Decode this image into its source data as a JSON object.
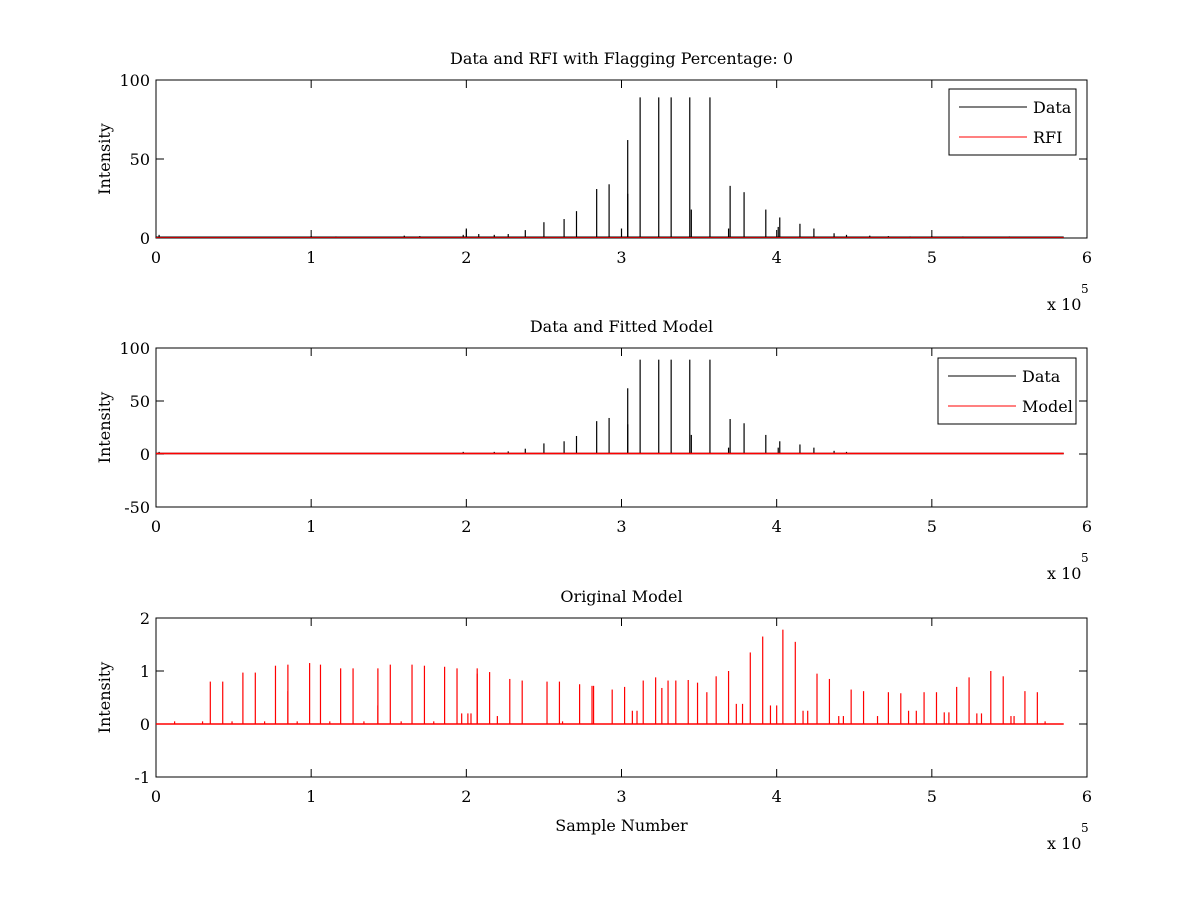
{
  "chart_data": [
    {
      "type": "line",
      "title": "Data and RFI with Flagging Percentage: 0",
      "xlabel": "",
      "ylabel": "Intensity",
      "xlim": [
        0,
        6
      ],
      "ylim": [
        0,
        100
      ],
      "xticks": [
        "0",
        "1",
        "2",
        "3",
        "4",
        "5",
        "6"
      ],
      "yticks": [
        "0",
        "50",
        "100"
      ],
      "x_exponent": {
        "base": "x 10",
        "power": "5"
      },
      "x_end": 5.85,
      "grid": false,
      "legend": "top-right",
      "series": [
        {
          "name": "Data",
          "color": "#000000",
          "baseline": 0.5,
          "spikes": [
            [
              0.02,
              2
            ],
            [
              1.0,
              1.2
            ],
            [
              1.16,
              1.0
            ],
            [
              1.6,
              1.5
            ],
            [
              1.7,
              1.2
            ],
            [
              1.98,
              2
            ],
            [
              2.0,
              6
            ],
            [
              2.08,
              2.5
            ],
            [
              2.18,
              2
            ],
            [
              2.27,
              2.5
            ],
            [
              2.38,
              5
            ],
            [
              2.5,
              10
            ],
            [
              2.63,
              12
            ],
            [
              2.71,
              17
            ],
            [
              2.84,
              31
            ],
            [
              2.92,
              34
            ],
            [
              3.0,
              6
            ],
            [
              3.04,
              62
            ],
            [
              3.04,
              28
            ],
            [
              3.12,
              89
            ],
            [
              3.24,
              89
            ],
            [
              3.32,
              89
            ],
            [
              3.44,
              89
            ],
            [
              3.45,
              18
            ],
            [
              3.57,
              89
            ],
            [
              3.7,
              33
            ],
            [
              3.69,
              6
            ],
            [
              3.79,
              29
            ],
            [
              3.93,
              18
            ],
            [
              4.02,
              13
            ],
            [
              4.01,
              7
            ],
            [
              4.15,
              9
            ],
            [
              4.24,
              6
            ],
            [
              4.37,
              3
            ],
            [
              4.45,
              2
            ],
            [
              4.6,
              1.5
            ],
            [
              4.72,
              1.2
            ],
            [
              4.86,
              1
            ],
            [
              5.0,
              1.2
            ],
            [
              5.2,
              1
            ],
            [
              5.5,
              1
            ]
          ]
        },
        {
          "name": "RFI",
          "color": "#ff0000",
          "baseline": 0,
          "spikes": []
        }
      ]
    },
    {
      "type": "line",
      "title": "Data and Fitted Model",
      "xlabel": "",
      "ylabel": "Intensity",
      "xlim": [
        0,
        6
      ],
      "ylim": [
        -50,
        100
      ],
      "xticks": [
        "0",
        "1",
        "2",
        "3",
        "4",
        "5",
        "6"
      ],
      "yticks": [
        "-50",
        "0",
        "50",
        "100"
      ],
      "x_exponent": {
        "base": "x 10",
        "power": "5"
      },
      "x_end": 5.85,
      "grid": false,
      "legend": "top-right",
      "series": [
        {
          "name": "Data",
          "color": "#000000",
          "baseline": 0.5,
          "spikes": [
            [
              0.02,
              2
            ],
            [
              1.98,
              2
            ],
            [
              2.18,
              2
            ],
            [
              2.27,
              2.5
            ],
            [
              2.38,
              5
            ],
            [
              2.5,
              10
            ],
            [
              2.63,
              12
            ],
            [
              2.71,
              17
            ],
            [
              2.84,
              31
            ],
            [
              2.92,
              34
            ],
            [
              3.04,
              62
            ],
            [
              3.04,
              28
            ],
            [
              3.12,
              89
            ],
            [
              3.24,
              89
            ],
            [
              3.32,
              89
            ],
            [
              3.44,
              89
            ],
            [
              3.45,
              18
            ],
            [
              3.57,
              89
            ],
            [
              3.7,
              33
            ],
            [
              3.69,
              6
            ],
            [
              3.79,
              29
            ],
            [
              3.93,
              18
            ],
            [
              4.02,
              12
            ],
            [
              4.01,
              6
            ],
            [
              4.15,
              9
            ],
            [
              4.24,
              6
            ],
            [
              4.37,
              3
            ],
            [
              4.45,
              2
            ]
          ]
        },
        {
          "name": "Model",
          "color": "#ff0000",
          "baseline": 0.5,
          "spikes": []
        }
      ]
    },
    {
      "type": "line",
      "title": "Original Model",
      "xlabel": "Sample Number",
      "ylabel": "Intensity",
      "xlim": [
        0,
        6
      ],
      "ylim": [
        -1,
        2
      ],
      "xticks": [
        "0",
        "1",
        "2",
        "3",
        "4",
        "5",
        "6"
      ],
      "yticks": [
        "-1",
        "0",
        "1",
        "2"
      ],
      "x_exponent": {
        "base": "x 10",
        "power": "5"
      },
      "x_end": 5.85,
      "grid": false,
      "legend": "",
      "series": [
        {
          "color": "#ff0000",
          "baseline": 0,
          "spikes": [
            [
              0.12,
              0.05
            ],
            [
              0.3,
              0.05
            ],
            [
              0.35,
              0.8
            ],
            [
              0.43,
              0.8
            ],
            [
              0.49,
              0.05
            ],
            [
              0.56,
              0.97
            ],
            [
              0.64,
              0.97
            ],
            [
              0.7,
              0.05
            ],
            [
              0.77,
              1.1
            ],
            [
              0.85,
              1.12
            ],
            [
              0.85,
              0.62
            ],
            [
              0.91,
              0.05
            ],
            [
              0.99,
              1.15
            ],
            [
              1.06,
              1.12
            ],
            [
              1.12,
              0.05
            ],
            [
              1.19,
              1.05
            ],
            [
              1.27,
              1.05
            ],
            [
              1.34,
              0.05
            ],
            [
              1.43,
              1.05
            ],
            [
              1.43,
              0.35
            ],
            [
              1.51,
              1.12
            ],
            [
              1.58,
              0.05
            ],
            [
              1.65,
              1.12
            ],
            [
              1.73,
              1.1
            ],
            [
              1.79,
              0.05
            ],
            [
              1.86,
              1.08
            ],
            [
              1.94,
              1.05
            ],
            [
              1.97,
              0.2
            ],
            [
              2.01,
              0.2
            ],
            [
              2.03,
              0.2
            ],
            [
              2.07,
              1.05
            ],
            [
              2.07,
              0.95
            ],
            [
              2.15,
              0.98
            ],
            [
              2.2,
              0.15
            ],
            [
              2.28,
              0.85
            ],
            [
              2.36,
              0.82
            ],
            [
              2.52,
              0.8
            ],
            [
              2.6,
              0.8
            ],
            [
              2.62,
              0.05
            ],
            [
              2.73,
              0.75
            ],
            [
              2.81,
              0.72
            ],
            [
              2.82,
              0.72
            ],
            [
              2.94,
              0.65
            ],
            [
              3.02,
              0.7
            ],
            [
              3.07,
              0.25
            ],
            [
              3.1,
              0.25
            ],
            [
              3.14,
              0.82
            ],
            [
              3.22,
              0.88
            ],
            [
              3.26,
              0.68
            ],
            [
              3.3,
              0.82
            ],
            [
              3.35,
              0.82
            ],
            [
              3.43,
              0.83
            ],
            [
              3.49,
              0.78
            ],
            [
              3.55,
              0.6
            ],
            [
              3.61,
              0.9
            ],
            [
              3.69,
              1.0
            ],
            [
              3.74,
              0.38
            ],
            [
              3.78,
              0.38
            ],
            [
              3.83,
              1.35
            ],
            [
              3.91,
              1.65
            ],
            [
              3.96,
              0.35
            ],
            [
              4.0,
              0.35
            ],
            [
              4.04,
              1.78
            ],
            [
              4.12,
              1.55
            ],
            [
              4.17,
              0.25
            ],
            [
              4.2,
              0.25
            ],
            [
              4.26,
              0.95
            ],
            [
              4.34,
              0.85
            ],
            [
              4.4,
              0.15
            ],
            [
              4.43,
              0.15
            ],
            [
              4.48,
              0.65
            ],
            [
              4.56,
              0.62
            ],
            [
              4.65,
              0.15
            ],
            [
              4.72,
              0.6
            ],
            [
              4.8,
              0.58
            ],
            [
              4.85,
              0.25
            ],
            [
              4.9,
              0.25
            ],
            [
              4.95,
              0.6
            ],
            [
              5.03,
              0.6
            ],
            [
              5.08,
              0.22
            ],
            [
              5.11,
              0.22
            ],
            [
              5.16,
              0.7
            ],
            [
              5.24,
              0.88
            ],
            [
              5.29,
              0.2
            ],
            [
              5.32,
              0.2
            ],
            [
              5.38,
              1.0
            ],
            [
              5.46,
              0.9
            ],
            [
              5.51,
              0.15
            ],
            [
              5.53,
              0.15
            ],
            [
              5.6,
              0.62
            ],
            [
              5.68,
              0.6
            ],
            [
              5.73,
              0.05
            ]
          ]
        }
      ]
    }
  ]
}
